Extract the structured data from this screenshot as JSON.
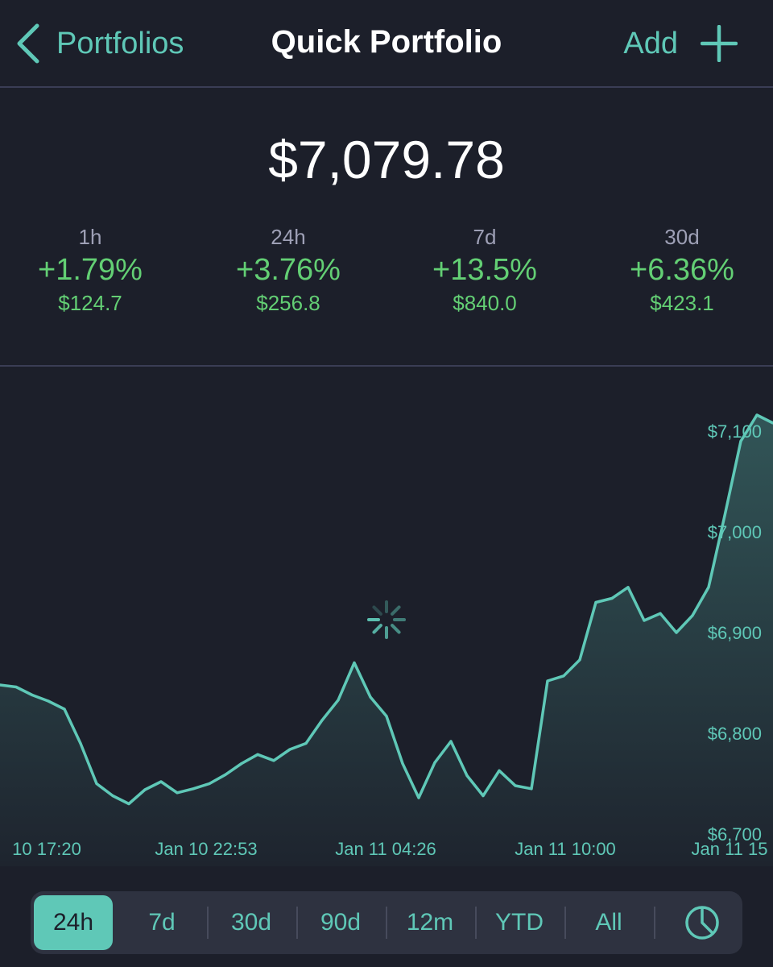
{
  "nav": {
    "back_label": "Portfolios",
    "title": "Quick Portfolio",
    "add_label": "Add"
  },
  "portfolio": {
    "total_value": "$7,079.78"
  },
  "stats": [
    {
      "period": "1h",
      "pct": "+1.79%",
      "value": "$124.7"
    },
    {
      "period": "24h",
      "pct": "+3.76%",
      "value": "$256.8"
    },
    {
      "period": "7d",
      "pct": "+13.5%",
      "value": "$840.0"
    },
    {
      "period": "30d",
      "pct": "+6.36%",
      "value": "$423.1"
    }
  ],
  "colors": {
    "accent": "#5fc8b7",
    "positive": "#63cf74",
    "background": "#1c1f2a"
  },
  "chart_data": {
    "type": "area",
    "y_ticks": [
      "$6,700",
      "$6,800",
      "$6,900",
      "$7,000",
      "$7,100"
    ],
    "ylim": [
      6700,
      7100
    ],
    "x_ticks": [
      "10 17:20",
      "Jan 10 22:53",
      "Jan 11 04:26",
      "Jan 11 10:00",
      "Jan 11 15"
    ],
    "x": [
      0,
      0.5,
      1,
      1.5,
      2,
      2.5,
      3,
      3.5,
      4,
      4.5,
      5,
      5.5,
      6,
      6.5,
      7,
      7.5,
      8,
      8.5,
      9,
      9.5,
      10,
      10.5,
      11,
      11.5,
      12,
      12.5,
      13,
      13.5,
      14,
      14.5,
      15,
      15.5,
      16,
      16.5,
      17,
      17.5,
      18,
      18.5,
      19,
      19.5,
      20,
      20.5,
      21,
      21.5,
      22,
      22.5,
      23,
      23.5,
      24
    ],
    "values": [
      6848,
      6846,
      6838,
      6832,
      6824,
      6790,
      6750,
      6738,
      6730,
      6744,
      6752,
      6741,
      6745,
      6750,
      6759,
      6770,
      6779,
      6773,
      6784,
      6790,
      6813,
      6833,
      6870,
      6836,
      6817,
      6770,
      6736,
      6771,
      6792,
      6758,
      6738,
      6763,
      6748,
      6745,
      6852,
      6857,
      6873,
      6930,
      6934,
      6945,
      6912,
      6919,
      6900,
      6917,
      6945,
      7016,
      7090,
      7116,
      7108
    ],
    "ylabel": "",
    "xlabel": ""
  },
  "ranges": {
    "items": [
      "24h",
      "7d",
      "30d",
      "90d",
      "12m",
      "YTD",
      "All"
    ],
    "active": "24h",
    "icon": "pie-chart-icon"
  }
}
